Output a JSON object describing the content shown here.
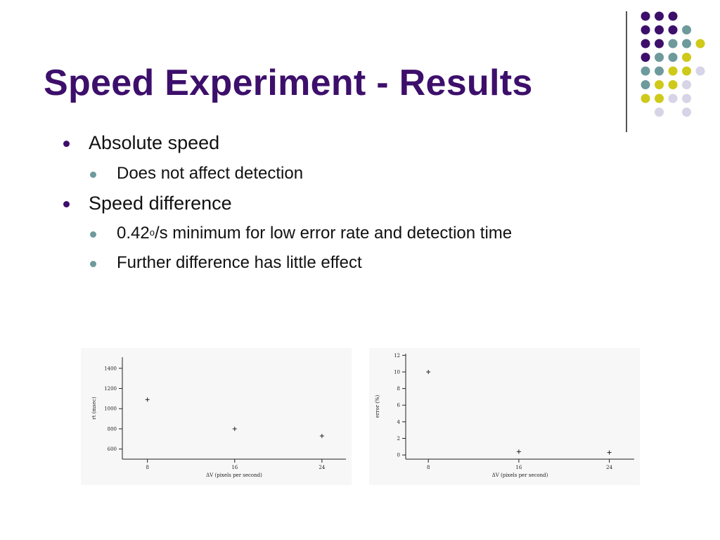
{
  "title": "Speed Experiment - Results",
  "bullets": [
    {
      "text": "Absolute speed",
      "sub": [
        {
          "text": "Does not affect detection"
        }
      ]
    },
    {
      "text": "Speed difference",
      "sub": [
        {
          "pre": "0.42",
          "sup": "o",
          "post": "/s minimum for low error rate and detection time"
        },
        {
          "text": "Further difference has little effect"
        }
      ]
    }
  ],
  "colors": {
    "title": "#3d0f6b",
    "purple": "#3d0f6b",
    "teal": "#6e9a9b",
    "yellow": "#cfc91a",
    "lavender": "#d6d4e6"
  },
  "decor_dots": [
    [
      "purple",
      "purple",
      "purple",
      null,
      null
    ],
    [
      "purple",
      "purple",
      "purple",
      "teal",
      null
    ],
    [
      "purple",
      "purple",
      "teal",
      "teal",
      "yellow"
    ],
    [
      "purple",
      "teal",
      "teal",
      "yellow",
      null
    ],
    [
      "teal",
      "teal",
      "yellow",
      "yellow",
      "lavender"
    ],
    [
      "teal",
      "yellow",
      "yellow",
      "lavender",
      null
    ],
    [
      "yellow",
      "yellow",
      "lavender",
      "lavender",
      null
    ],
    [
      null,
      "lavender",
      null,
      "lavender",
      null
    ]
  ],
  "chart_data": [
    {
      "type": "scatter",
      "xlabel": "ΔV (pixels per second)",
      "ylabel": "rt (msec)",
      "x": [
        8,
        16,
        24
      ],
      "y": [
        1090,
        800,
        730
      ],
      "xticks": [
        8,
        16,
        24
      ],
      "yticks": [
        600,
        800,
        1000,
        1200,
        1400
      ],
      "xlim": [
        5.7,
        26.2
      ],
      "ylim": [
        500,
        1510
      ],
      "marker": "+"
    },
    {
      "type": "scatter",
      "xlabel": "ΔV (pixels per second)",
      "ylabel": "error (%)",
      "x": [
        8,
        16,
        24
      ],
      "y": [
        10,
        0.4,
        0.3
      ],
      "xticks": [
        8,
        16,
        24
      ],
      "yticks": [
        0,
        2,
        4,
        6,
        8,
        10,
        12
      ],
      "xlim": [
        6.0,
        26.2
      ],
      "ylim": [
        -0.5,
        12.2
      ],
      "marker": "+"
    }
  ]
}
